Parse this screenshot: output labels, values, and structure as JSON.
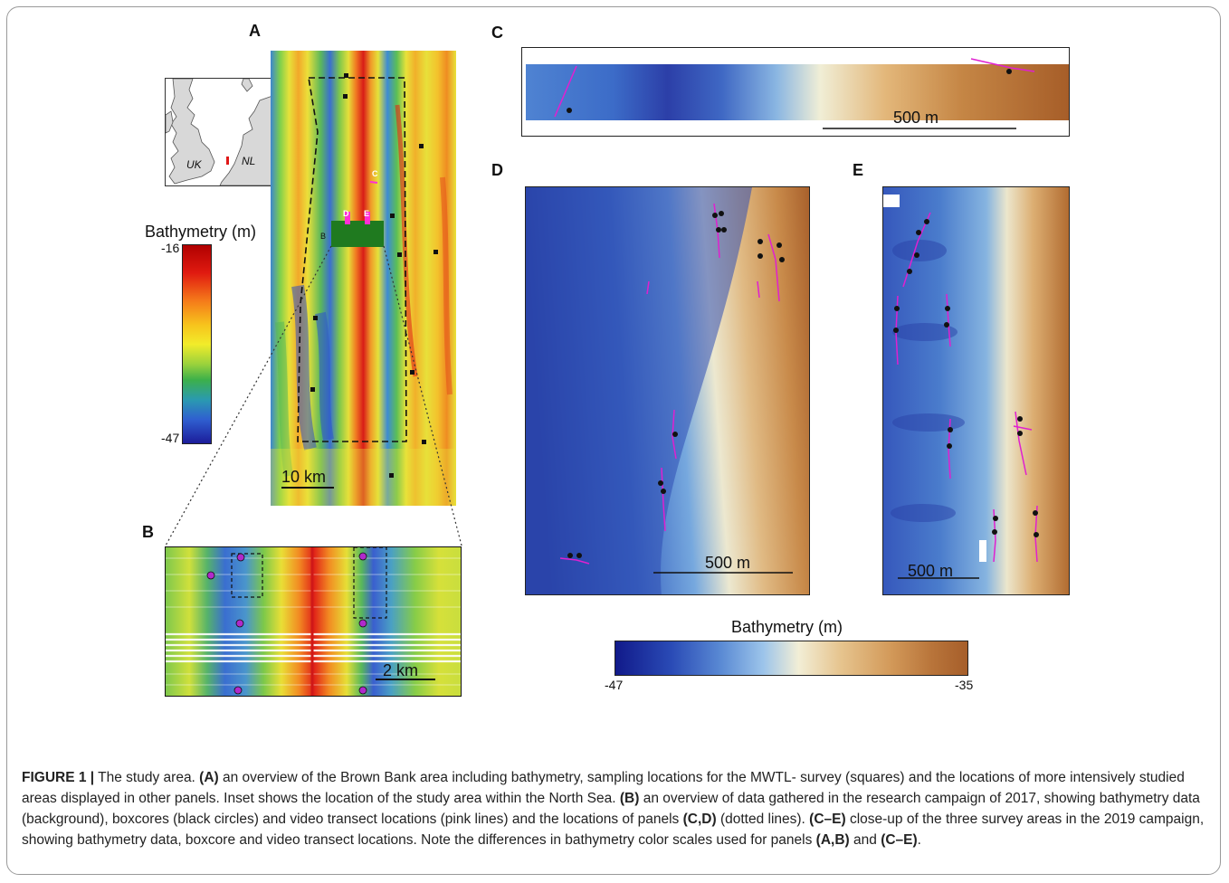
{
  "figure": {
    "panel_labels": {
      "a": "A",
      "b": "B",
      "c": "C",
      "d": "D",
      "e": "E"
    },
    "inset": {
      "uk_label": "UK",
      "nl_label": "NL"
    },
    "panel_a": {
      "scale_bar": "10 km",
      "area_labels": {
        "b": "B",
        "c": "C",
        "d": "D",
        "e": "E"
      },
      "colorbar": {
        "title": "Bathymetry (m)",
        "max": "-16",
        "min": "-47"
      }
    },
    "panel_b": {
      "scale_bar": "2 km"
    },
    "panel_c": {
      "scale_bar": "500 m"
    },
    "panel_d": {
      "scale_bar": "500 m"
    },
    "panel_e": {
      "scale_bar": "500 m"
    },
    "colorbar_ce": {
      "title": "Bathymetry (m)",
      "min": "-47",
      "max": "-35"
    },
    "colors": {
      "magenta_transect": "#e020d0",
      "deep_blue": "#1c2aa8",
      "brown": "#a85a22",
      "red": "#d01818",
      "green_area": "#1f7a1f"
    }
  },
  "caption": {
    "figure_number": "FIGURE 1 |",
    "intro": " The study area. ",
    "a_label": "(A)",
    "a_text": " an overview of the Brown Bank area including bathymetry, sampling locations for the MWTL- survey (squares) and the locations of more intensively studied areas displayed in other panels. Inset shows the location of the study area within the North Sea. ",
    "b_label": "(B)",
    "b_text": " an overview of data gathered in the research campaign of 2017, showing bathymetry data (background), boxcores (black circles) and video transect locations (pink lines) and the locations of panels ",
    "cd_label": "(C,D)",
    "cd_text": " (dotted lines). ",
    "ce_label": "(C–E)",
    "ce_text": " close-up of the three survey areas in the 2019 campaign, showing bathymetry data, boxcore and video transect locations. Note the differences in bathymetry color scales used for panels ",
    "ab_label": "(A,B)",
    "and_text": " and ",
    "ce_label2": "(C–E)",
    "end_text": "."
  }
}
